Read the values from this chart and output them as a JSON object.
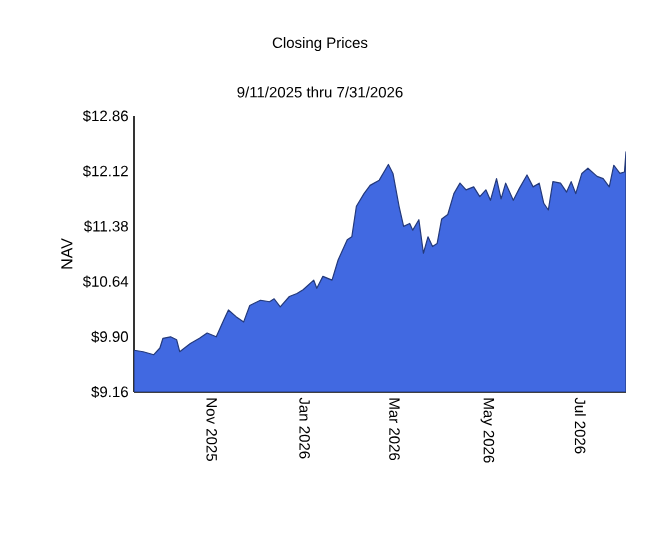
{
  "chart_data": {
    "type": "area",
    "title": "Closing Prices",
    "subtitle": "9/11/2025 thru 7/31/2026",
    "ylabel": "NAV",
    "x": [
      "2025-09-11",
      "2025-09-17",
      "2025-09-24",
      "2025-09-28",
      "2025-09-30",
      "2025-10-05",
      "2025-10-09",
      "2025-10-11",
      "2025-10-18",
      "2025-10-24",
      "2025-10-29",
      "2025-11-04",
      "2025-11-09",
      "2025-11-12",
      "2025-11-17",
      "2025-11-22",
      "2025-11-26",
      "2025-12-03",
      "2025-12-09",
      "2025-12-12",
      "2025-12-16",
      "2025-12-22",
      "2025-12-27",
      "2025-12-31",
      "2026-01-07",
      "2026-01-09",
      "2026-01-13",
      "2026-01-19",
      "2026-01-23",
      "2026-01-29",
      "2026-02-01",
      "2026-02-04",
      "2026-02-09",
      "2026-02-13",
      "2026-02-19",
      "2026-02-25",
      "2026-02-28",
      "2026-03-04",
      "2026-03-07",
      "2026-03-11",
      "2026-03-13",
      "2026-03-17",
      "2026-03-20",
      "2026-03-23",
      "2026-03-26",
      "2026-03-29",
      "2026-04-01",
      "2026-04-05",
      "2026-04-09",
      "2026-04-13",
      "2026-04-17",
      "2026-04-22",
      "2026-04-26",
      "2026-04-30",
      "2026-05-03",
      "2026-05-07",
      "2026-05-10",
      "2026-05-13",
      "2026-05-18",
      "2026-05-22",
      "2026-05-27",
      "2026-05-31",
      "2026-06-04",
      "2026-06-07",
      "2026-06-10",
      "2026-06-13",
      "2026-06-18",
      "2026-06-22",
      "2026-06-25",
      "2026-06-28",
      "2026-07-02",
      "2026-07-06",
      "2026-07-12",
      "2026-07-16",
      "2026-07-20",
      "2026-07-23",
      "2026-07-27",
      "2026-07-30",
      "2026-07-31"
    ],
    "series": [
      {
        "color": "#4169e1",
        "values": [
          9.72,
          9.7,
          9.66,
          9.75,
          9.88,
          9.9,
          9.86,
          9.7,
          9.81,
          9.88,
          9.95,
          9.9,
          10.13,
          10.26,
          10.17,
          10.1,
          10.32,
          10.39,
          10.37,
          10.41,
          10.3,
          10.44,
          10.48,
          10.53,
          10.66,
          10.55,
          10.71,
          10.66,
          10.93,
          11.2,
          11.24,
          11.65,
          11.82,
          11.93,
          12.0,
          12.21,
          12.09,
          11.65,
          11.38,
          11.42,
          11.33,
          11.47,
          11.02,
          11.24,
          11.11,
          11.15,
          11.48,
          11.54,
          11.82,
          11.96,
          11.87,
          11.91,
          11.78,
          11.87,
          11.73,
          12.02,
          11.75,
          11.96,
          11.73,
          11.89,
          12.07,
          11.91,
          11.96,
          11.69,
          11.6,
          11.98,
          11.96,
          11.84,
          11.98,
          11.82,
          12.09,
          12.16,
          12.05,
          12.02,
          11.91,
          12.2,
          12.09,
          12.11,
          12.38
        ]
      }
    ],
    "xlim": [
      "2025-09-11",
      "2026-07-31"
    ],
    "xticks": [
      {
        "value": "2025-11-01",
        "label": "Nov 2025"
      },
      {
        "value": "2026-01-01",
        "label": "Jan 2026"
      },
      {
        "value": "2026-03-01",
        "label": "Mar 2026"
      },
      {
        "value": "2026-05-01",
        "label": "May 2026"
      },
      {
        "value": "2026-07-01",
        "label": "Jul 2026"
      }
    ],
    "ylim": [
      9.16,
      12.86
    ],
    "yticks": [
      {
        "value": 9.16,
        "label": "$9.16"
      },
      {
        "value": 9.9,
        "label": "$9.90"
      },
      {
        "value": 10.64,
        "label": "$10.64"
      },
      {
        "value": 11.38,
        "label": "$11.38"
      },
      {
        "value": 12.12,
        "label": "$12.12"
      },
      {
        "value": 12.86,
        "label": "$12.86"
      }
    ]
  }
}
